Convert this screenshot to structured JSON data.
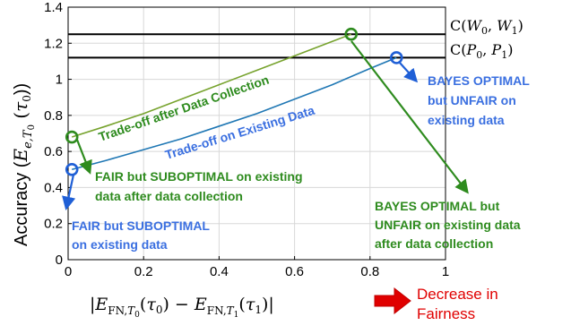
{
  "chart_data": {
    "type": "line",
    "xlabel": "|E_FN,T0(τ0) − E_FN,T1(τ1)|",
    "ylabel": "Accuracy (E_e,T0(τ0))",
    "xlim": [
      0,
      1
    ],
    "ylim": [
      0,
      1.4
    ],
    "xticks": [
      "0",
      "0.2",
      "0.4",
      "0.6",
      "0.8",
      "1"
    ],
    "yticks": [
      "0",
      "0.2",
      "0.4",
      "0.6",
      "0.8",
      "1",
      "1.2",
      "1.4"
    ],
    "grid": true,
    "hlines": [
      {
        "label": "C(W0, W1)",
        "y": 1.25,
        "color": "#000000",
        "style": "solid"
      },
      {
        "label": "C(P0, P1)",
        "y": 1.12,
        "color": "#000000",
        "style": "solid"
      }
    ],
    "series": [
      {
        "name": "Trade-off after Data Collection",
        "color": "#77a32e",
        "x": [
          0.01,
          0.1,
          0.2,
          0.3,
          0.4,
          0.5,
          0.6,
          0.7,
          0.75
        ],
        "y": [
          0.68,
          0.74,
          0.81,
          0.89,
          0.97,
          1.05,
          1.13,
          1.21,
          1.25
        ]
      },
      {
        "name": "Trade-off on Existing Data",
        "color": "#1f77b4",
        "x": [
          0.01,
          0.1,
          0.2,
          0.3,
          0.4,
          0.5,
          0.6,
          0.7,
          0.8,
          0.87
        ],
        "y": [
          0.5,
          0.55,
          0.61,
          0.67,
          0.74,
          0.81,
          0.89,
          0.97,
          1.06,
          1.12
        ]
      }
    ],
    "markers": [
      {
        "x": 0.01,
        "y": 0.68,
        "color": "#2e8b1e"
      },
      {
        "x": 0.75,
        "y": 1.25,
        "color": "#2e8b1e"
      },
      {
        "x": 0.01,
        "y": 0.5,
        "color": "#1f5fd6"
      },
      {
        "x": 0.87,
        "y": 1.12,
        "color": "#1f5fd6"
      }
    ],
    "curve_labels": [
      {
        "text": "Trade-off after Data Collection",
        "color": "#2e8b1e"
      },
      {
        "text": "Trade-off on Existing Data",
        "color": "#3a6fe0"
      }
    ],
    "annotations": [
      {
        "lines": [
          "FAIR but SUBOPTIMAL on existing",
          "data after data collection"
        ],
        "color": "#2e8b1e"
      },
      {
        "lines": [
          "FAIR but SUBOPTIMAL",
          "on existing data"
        ],
        "color": "#3a6fe0"
      },
      {
        "lines": [
          "BAYES OPTIMAL",
          "but UNFAIR on",
          "existing data"
        ],
        "color": "#3a6fe0"
      },
      {
        "lines": [
          "BAYES OPTIMAL but",
          "UNFAIR on existing data",
          "after data collection"
        ],
        "color": "#2e8b1e"
      }
    ],
    "note": {
      "lines": [
        "Decrease in",
        "Fairness"
      ],
      "color": "#e00000"
    }
  }
}
